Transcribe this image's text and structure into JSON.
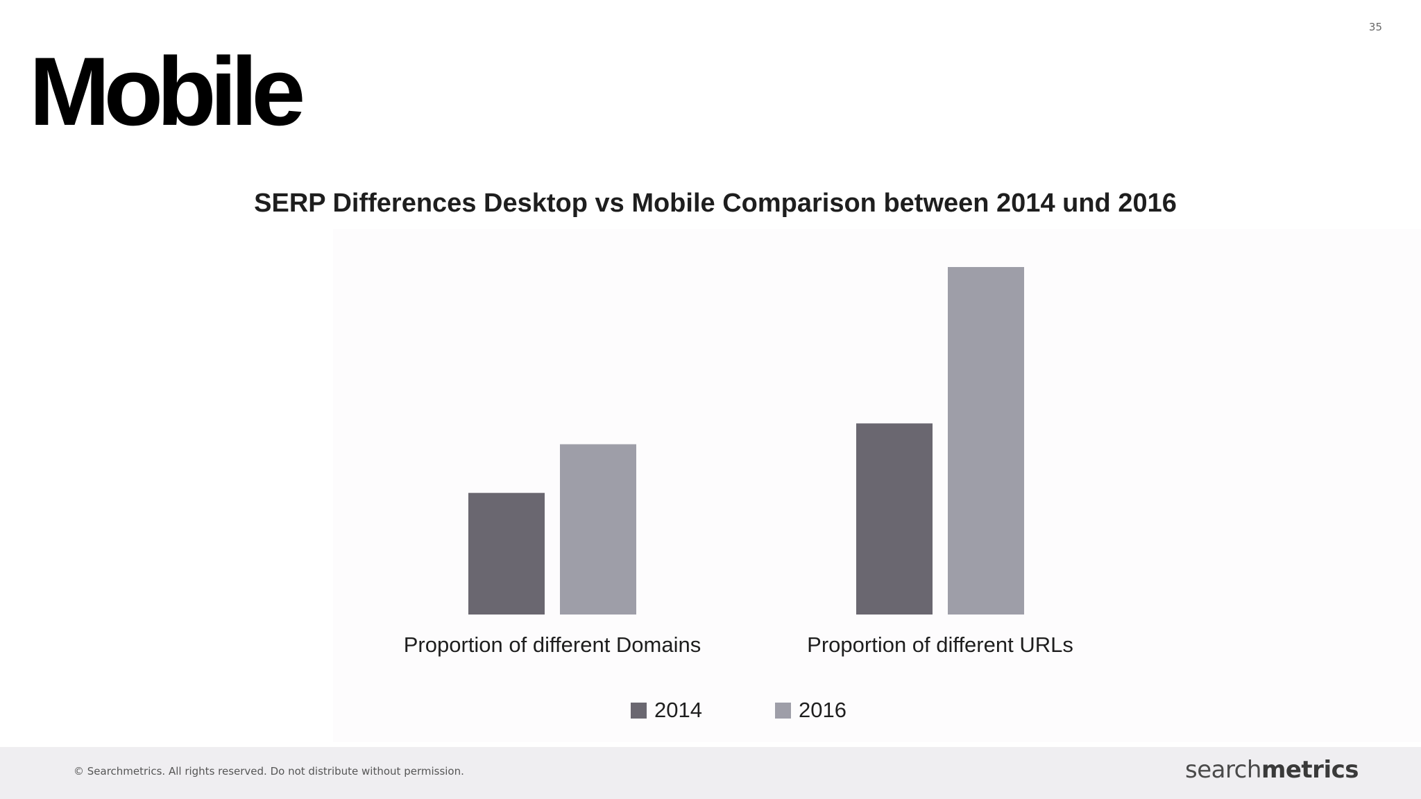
{
  "slide": {
    "number": "35",
    "title": "Mobile"
  },
  "footer": {
    "copyright": "© Searchmetrics. All rights reserved. Do not distribute without permission.",
    "logo_light": "search",
    "logo_bold": "metrics"
  },
  "colors": {
    "series_2014": "#6a6770",
    "series_2016": "#9e9ea8",
    "footer_bg": "#efeef1"
  },
  "chart_data": {
    "type": "bar",
    "title": "SERP Differences Desktop vs Mobile Comparison between 2014 und 2016",
    "categories": [
      "Proportion of different Domains",
      "Proportion of different URLs"
    ],
    "series": [
      {
        "name": "2014",
        "values": [
          35,
          55
        ]
      },
      {
        "name": "2016",
        "values": [
          49,
          100
        ]
      }
    ],
    "ylim": [
      0,
      100
    ],
    "xlabel": "",
    "ylabel": "",
    "grid": false,
    "legend": "bottom"
  }
}
